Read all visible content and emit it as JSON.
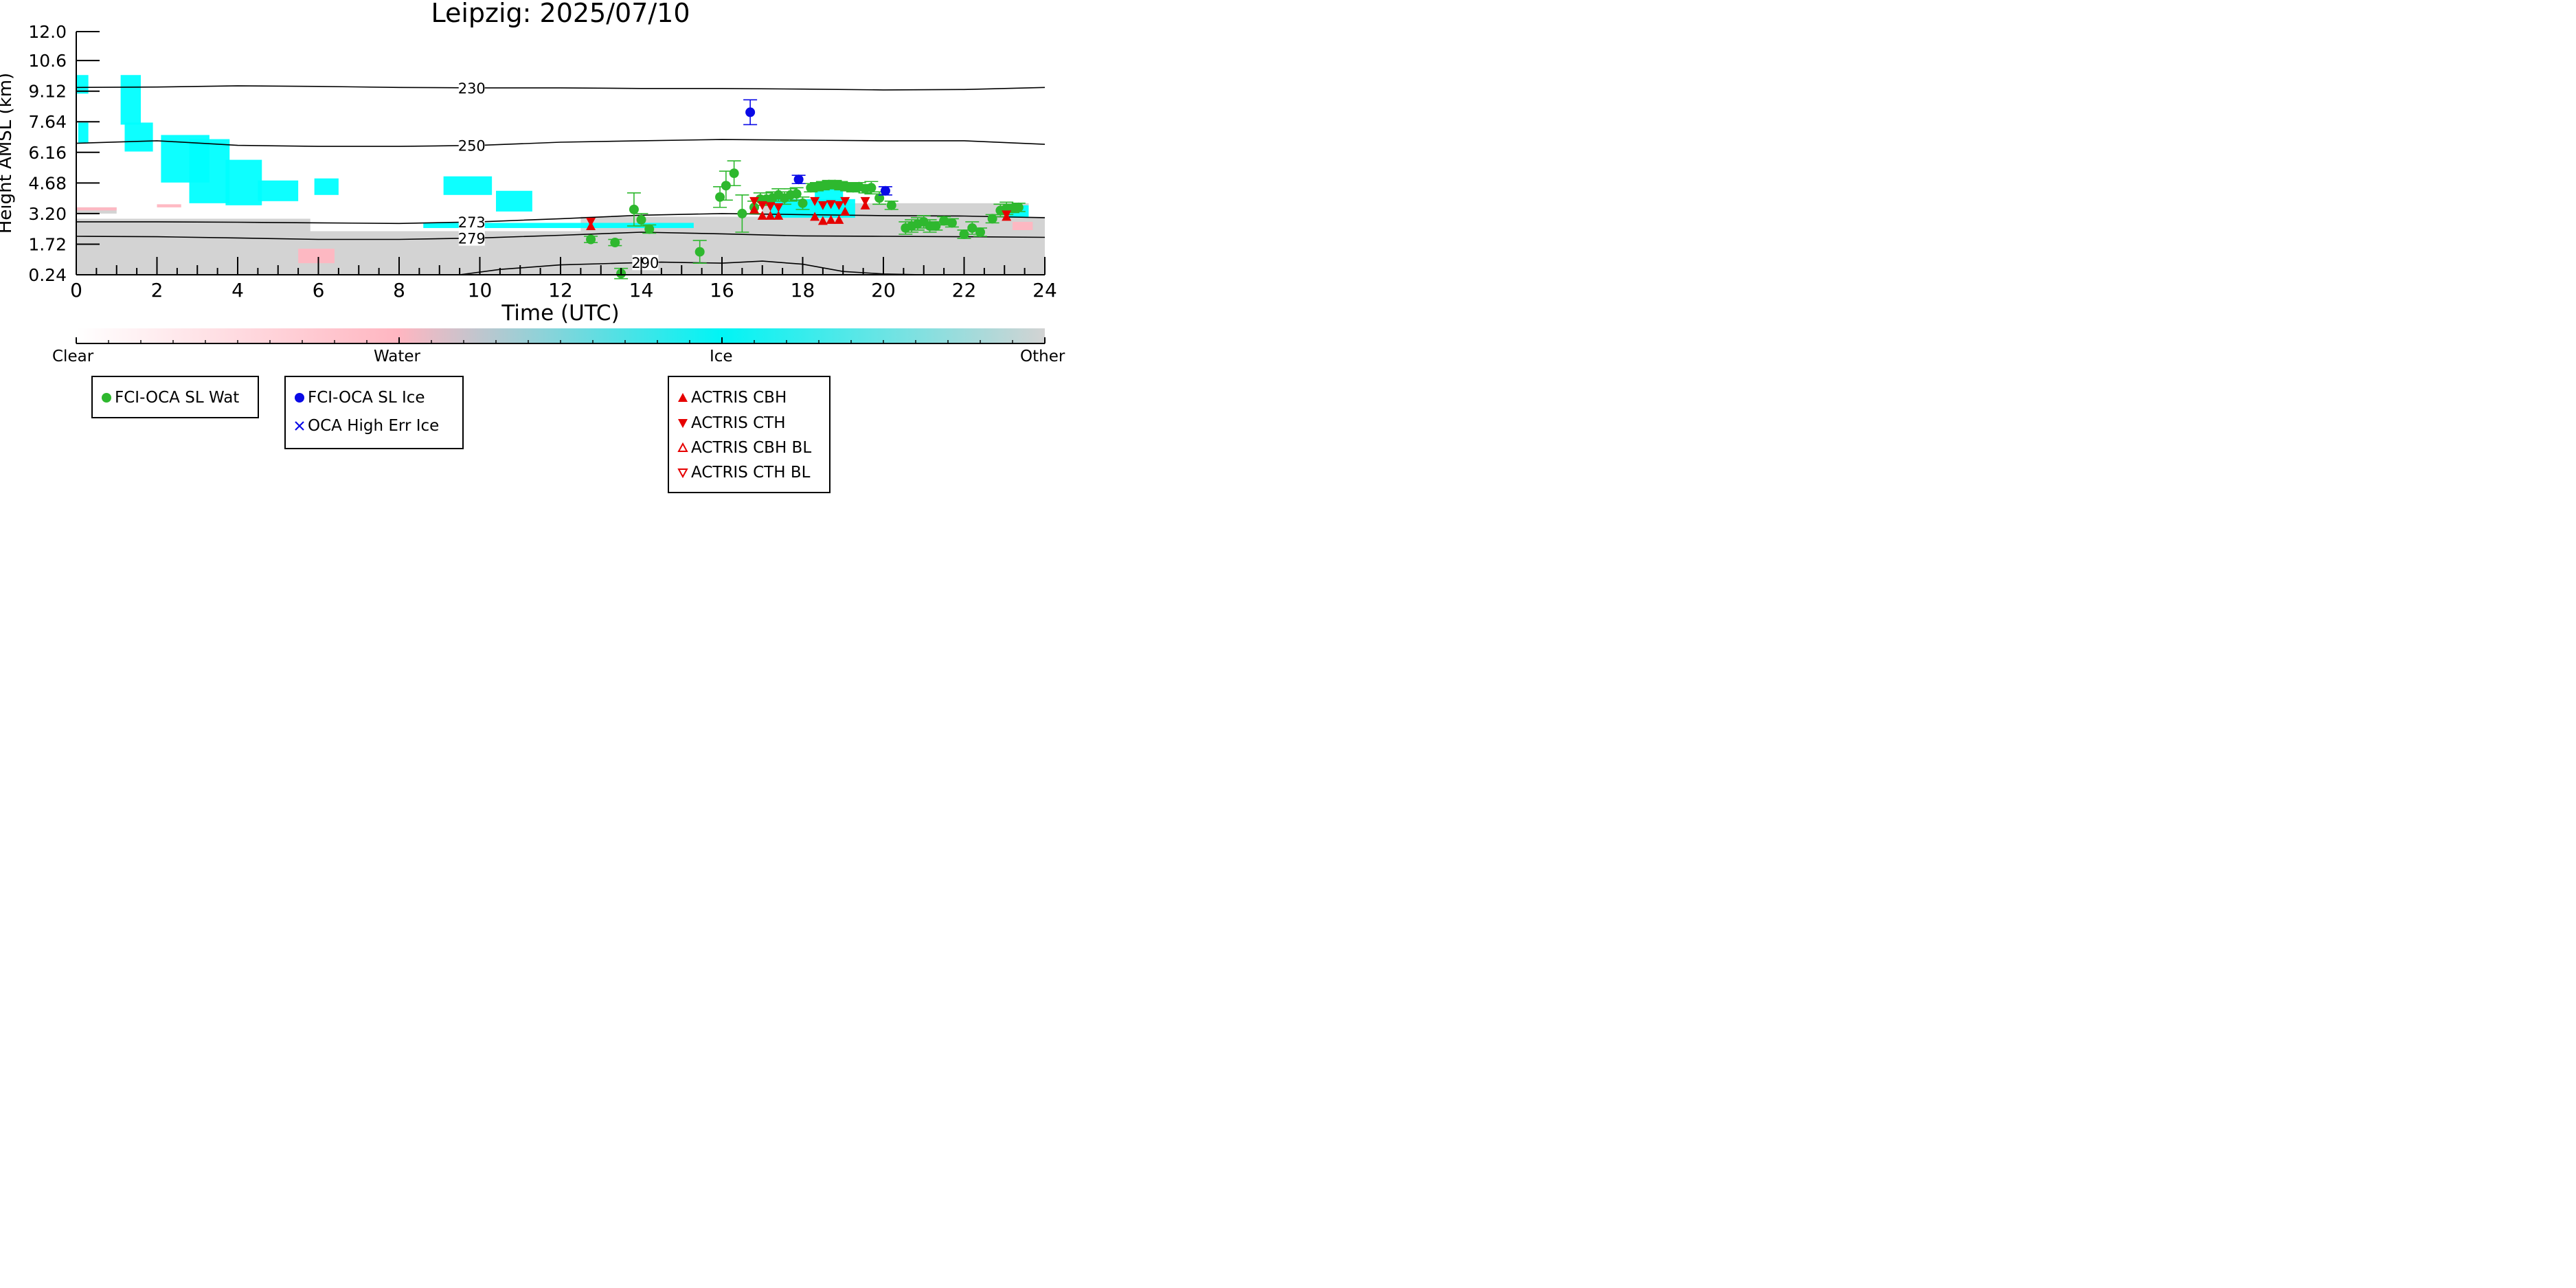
{
  "chart_data": {
    "type": "scatter",
    "title": "Leipzig: 2025/07/10",
    "xlabel": "Time (UTC)",
    "ylabel": "Height AMSL (km)",
    "xlim": [
      0,
      24
    ],
    "ylim": [
      0.24,
      12.0
    ],
    "x_ticks": [
      "0",
      "2",
      "4",
      "6",
      "8",
      "10",
      "12",
      "14",
      "16",
      "18",
      "20",
      "22",
      "24"
    ],
    "y_ticks": [
      "12.0",
      "10.6",
      "9.12",
      "7.64",
      "6.16",
      "4.68",
      "3.20",
      "1.72",
      "0.24"
    ],
    "y_tick_values": [
      12.0,
      10.6,
      9.12,
      7.64,
      6.16,
      4.68,
      3.2,
      1.72,
      0.24
    ],
    "colorbar": {
      "labels": [
        "Clear",
        "Water",
        "Ice",
        "Other"
      ],
      "colors": [
        "#ffffff",
        "#ffb6c1",
        "#00ffff",
        "#d3d3d3"
      ]
    },
    "contours": [
      {
        "label": "230",
        "x": [
          0,
          2,
          4,
          6,
          8,
          10,
          12,
          14,
          16,
          18,
          20,
          22,
          24
        ],
        "y": [
          9.3,
          9.32,
          9.38,
          9.35,
          9.3,
          9.28,
          9.28,
          9.25,
          9.25,
          9.22,
          9.18,
          9.2,
          9.3
        ]
      },
      {
        "label": "250",
        "x": [
          0,
          2,
          4,
          6,
          8,
          10,
          12,
          14,
          16,
          18,
          20,
          22,
          24
        ],
        "y": [
          6.6,
          6.72,
          6.5,
          6.45,
          6.45,
          6.5,
          6.65,
          6.72,
          6.78,
          6.75,
          6.72,
          6.72,
          6.55
        ]
      },
      {
        "label": "273",
        "x": [
          0,
          2,
          4,
          6,
          8,
          10,
          12,
          14,
          16,
          18,
          20,
          22,
          24
        ],
        "y": [
          2.8,
          2.8,
          2.78,
          2.75,
          2.72,
          2.8,
          2.95,
          3.12,
          3.2,
          3.15,
          3.1,
          3.08,
          3.0
        ]
      },
      {
        "label": "279",
        "x": [
          0,
          2,
          4,
          6,
          8,
          10,
          12,
          14,
          16,
          18,
          20,
          22,
          24
        ],
        "y": [
          2.1,
          2.08,
          2.02,
          1.95,
          1.95,
          2.02,
          2.15,
          2.3,
          2.22,
          2.12,
          2.1,
          2.08,
          2.05
        ]
      },
      {
        "label": "290",
        "x": [
          9.5,
          10.5,
          12,
          13.5,
          14.5,
          16,
          17,
          18,
          19,
          20,
          21,
          22,
          24
        ],
        "y": [
          0.24,
          0.5,
          0.72,
          0.8,
          0.85,
          0.8,
          0.9,
          0.75,
          0.4,
          0.28,
          0.24,
          0.24,
          0.24
        ]
      }
    ],
    "series": [
      {
        "name": "FCI-OCA SL Wat",
        "color": "#2eb82e",
        "marker": "circle",
        "points": [
          [
            12.75,
            1.95,
            0.15
          ],
          [
            13.35,
            1.8,
            0.15
          ],
          [
            13.5,
            0.3,
            0.25
          ],
          [
            13.82,
            3.4,
            0.8
          ],
          [
            14.0,
            2.9,
            0.3
          ],
          [
            14.2,
            2.45,
            0.2
          ],
          [
            15.45,
            1.35,
            0.55
          ],
          [
            15.95,
            4.0,
            0.5
          ],
          [
            16.1,
            4.55,
            0.7
          ],
          [
            16.3,
            5.15,
            0.6
          ],
          [
            16.5,
            3.2,
            0.9
          ],
          [
            16.8,
            3.5,
            0.3
          ],
          [
            16.95,
            3.9,
            0.3
          ],
          [
            17.1,
            3.9,
            0.3
          ],
          [
            17.25,
            3.95,
            0.3
          ],
          [
            17.4,
            4.1,
            0.3
          ],
          [
            17.55,
            3.95,
            0.3
          ],
          [
            17.7,
            4.1,
            0.3
          ],
          [
            17.85,
            4.15,
            0.3
          ],
          [
            18.0,
            3.7,
            0.3
          ],
          [
            18.2,
            4.45,
            0.2
          ],
          [
            18.35,
            4.5,
            0.2
          ],
          [
            18.5,
            4.55,
            0.2
          ],
          [
            18.65,
            4.6,
            0.2
          ],
          [
            18.8,
            4.6,
            0.2
          ],
          [
            18.95,
            4.55,
            0.2
          ],
          [
            19.1,
            4.5,
            0.2
          ],
          [
            19.25,
            4.45,
            0.2
          ],
          [
            19.4,
            4.5,
            0.2
          ],
          [
            19.55,
            4.4,
            0.2
          ],
          [
            19.7,
            4.45,
            0.3
          ],
          [
            19.9,
            3.95,
            0.3
          ],
          [
            20.2,
            3.6,
            0.2
          ],
          [
            20.55,
            2.5,
            0.3
          ],
          [
            20.7,
            2.6,
            0.3
          ],
          [
            20.85,
            2.7,
            0.3
          ],
          [
            21.0,
            2.8,
            0.3
          ],
          [
            21.15,
            2.6,
            0.3
          ],
          [
            21.3,
            2.6,
            0.2
          ],
          [
            21.5,
            2.85,
            0.2
          ],
          [
            21.7,
            2.75,
            0.2
          ],
          [
            22.0,
            2.2,
            0.2
          ],
          [
            22.2,
            2.5,
            0.3
          ],
          [
            22.4,
            2.3,
            0.2
          ],
          [
            22.7,
            2.95,
            0.2
          ],
          [
            22.9,
            3.35,
            0.3
          ],
          [
            23.05,
            3.45,
            0.3
          ],
          [
            23.2,
            3.45,
            0.2
          ],
          [
            23.35,
            3.5,
            0.2
          ]
        ]
      },
      {
        "name": "FCI-OCA SL Ice",
        "color": "#0a0ae6",
        "marker": "circle",
        "points": [
          [
            16.7,
            8.1,
            0.6
          ],
          [
            17.9,
            4.85,
            0.2
          ],
          [
            20.05,
            4.3,
            0.2
          ]
        ]
      },
      {
        "name": "OCA High Err Ice",
        "color": "#0a0ae6",
        "marker": "x",
        "points": []
      },
      {
        "name": "ACTRIS CBH",
        "color": "#e60000",
        "marker": "triangle-up",
        "points": [
          [
            12.75,
            2.6
          ],
          [
            16.8,
            3.4
          ],
          [
            17.0,
            3.1
          ],
          [
            17.2,
            3.1
          ],
          [
            17.4,
            3.1
          ],
          [
            18.3,
            3.05
          ],
          [
            18.5,
            2.85
          ],
          [
            18.7,
            2.9
          ],
          [
            18.9,
            2.9
          ],
          [
            19.05,
            3.3
          ],
          [
            19.55,
            3.6
          ],
          [
            23.05,
            3.05
          ]
        ]
      },
      {
        "name": "ACTRIS CTH",
        "color": "#e60000",
        "marker": "triangle-down",
        "points": [
          [
            12.75,
            2.8
          ],
          [
            16.8,
            3.8
          ],
          [
            17.0,
            3.6
          ],
          [
            17.2,
            3.55
          ],
          [
            17.4,
            3.5
          ],
          [
            18.3,
            3.8
          ],
          [
            18.5,
            3.6
          ],
          [
            18.7,
            3.65
          ],
          [
            18.9,
            3.6
          ],
          [
            19.05,
            3.8
          ],
          [
            19.55,
            3.8
          ],
          [
            23.05,
            3.15
          ]
        ]
      },
      {
        "name": "ACTRIS CBH BL",
        "color": "#e60000",
        "marker": "triangle-up-open",
        "points": []
      },
      {
        "name": "ACTRIS CTH BL",
        "color": "#e60000",
        "marker": "triangle-down-open",
        "points": []
      }
    ],
    "cloud_regions": [
      {
        "class": "Ice",
        "x0": 0.0,
        "x1": 0.3,
        "y0": 9.0,
        "y1": 9.9
      },
      {
        "class": "Ice",
        "x0": 0.05,
        "x1": 0.3,
        "y0": 6.6,
        "y1": 7.6
      },
      {
        "class": "Ice",
        "x0": 1.1,
        "x1": 1.6,
        "y0": 7.5,
        "y1": 9.9
      },
      {
        "class": "Ice",
        "x0": 1.2,
        "x1": 1.9,
        "y0": 6.2,
        "y1": 7.6
      },
      {
        "class": "Ice",
        "x0": 2.1,
        "x1": 3.3,
        "y0": 4.7,
        "y1": 7.0
      },
      {
        "class": "Ice",
        "x0": 2.8,
        "x1": 3.8,
        "y0": 3.7,
        "y1": 6.8
      },
      {
        "class": "Ice",
        "x0": 3.7,
        "x1": 4.6,
        "y0": 3.6,
        "y1": 5.8
      },
      {
        "class": "Ice",
        "x0": 4.5,
        "x1": 5.5,
        "y0": 3.8,
        "y1": 4.8
      },
      {
        "class": "Ice",
        "x0": 5.9,
        "x1": 6.5,
        "y0": 4.1,
        "y1": 4.9
      },
      {
        "class": "Ice",
        "x0": 9.1,
        "x1": 10.3,
        "y0": 4.1,
        "y1": 5.0
      },
      {
        "class": "Ice",
        "x0": 10.4,
        "x1": 11.3,
        "y0": 3.3,
        "y1": 4.3
      },
      {
        "class": "Ice",
        "x0": 8.6,
        "x1": 15.3,
        "y0": 2.5,
        "y1": 2.75
      },
      {
        "class": "Ice",
        "x0": 17.2,
        "x1": 19.3,
        "y0": 3.0,
        "y1": 3.9
      },
      {
        "class": "Ice",
        "x0": 18.3,
        "x1": 19.0,
        "y0": 3.0,
        "y1": 4.6
      },
      {
        "class": "Ice",
        "x0": 23.0,
        "x1": 23.6,
        "y0": 3.0,
        "y1": 3.6
      },
      {
        "class": "Other",
        "x0": 0.0,
        "x1": 24.0,
        "y0": 0.24,
        "y1": 2.35
      },
      {
        "class": "Other",
        "x0": 0.0,
        "x1": 5.8,
        "y0": 2.2,
        "y1": 2.95
      },
      {
        "class": "Other",
        "x0": 12.5,
        "x1": 24.0,
        "y0": 2.2,
        "y1": 3.05
      },
      {
        "class": "Other",
        "x0": 17.0,
        "x1": 23.6,
        "y0": 3.0,
        "y1": 3.7
      },
      {
        "class": "Other",
        "x0": 0.0,
        "x1": 1.0,
        "y0": 3.2,
        "y1": 3.5
      },
      {
        "class": "Water",
        "x0": 0.0,
        "x1": 1.0,
        "y0": 3.35,
        "y1": 3.5
      },
      {
        "class": "Water",
        "x0": 2.0,
        "x1": 2.6,
        "y0": 3.5,
        "y1": 3.65
      },
      {
        "class": "Water",
        "x0": 5.5,
        "x1": 6.4,
        "y0": 0.8,
        "y1": 1.5
      },
      {
        "class": "Water",
        "x0": 18.1,
        "x1": 19.0,
        "y0": 3.5,
        "y1": 3.9
      },
      {
        "class": "Water",
        "x0": 23.2,
        "x1": 23.7,
        "y0": 2.4,
        "y1": 2.8
      }
    ]
  }
}
